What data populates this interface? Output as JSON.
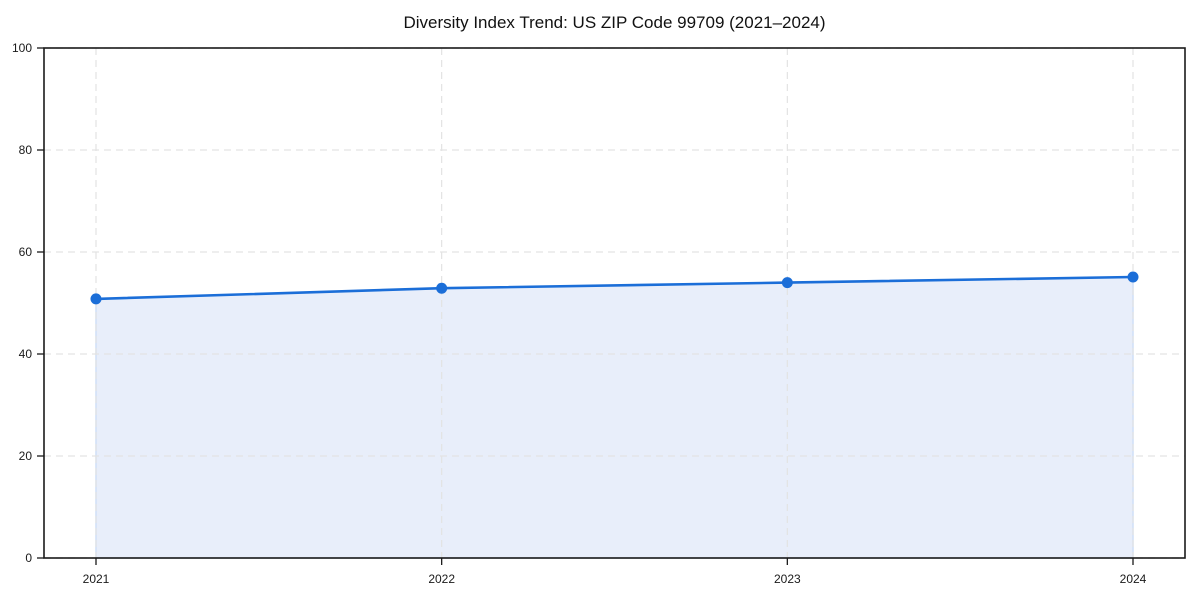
{
  "title": "Diversity Index Trend: US ZIP Code 99709 (2021–2024)",
  "chart_data": {
    "type": "area",
    "categories": [
      "2021",
      "2022",
      "2023",
      "2024"
    ],
    "series": [
      {
        "name": "Diversity Index",
        "values": [
          50.8,
          52.9,
          54.0,
          55.1
        ]
      }
    ],
    "title": "Diversity Index Trend: US ZIP Code 99709 (2021–2024)",
    "xlabel": "",
    "ylabel": "",
    "ylim": [
      0,
      100
    ],
    "yticks": [
      0,
      20,
      40,
      60,
      80,
      100
    ],
    "grid": "dashed-both-axes",
    "legend": "none",
    "marker": "circle",
    "colors": {
      "line": "#1b6ed8",
      "marker": "#1b6ed8",
      "fill": "#e8eefa",
      "fill_edge": "#cfdff7",
      "grid": "#e3e3e3",
      "axis": "#1a1a1a",
      "text": "#1a1a1a",
      "background": "#ffffff"
    }
  }
}
